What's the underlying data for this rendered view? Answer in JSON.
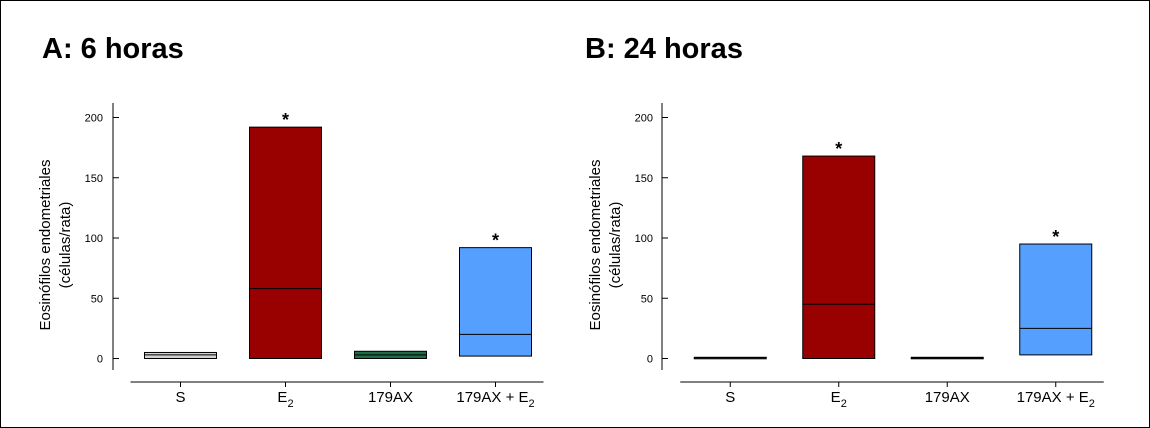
{
  "chart_data": [
    {
      "type": "box",
      "title": "A: 6 horas",
      "ylabel_line1": "Eosinófilos endometriales",
      "ylabel_line2": "(células/rata)",
      "yticks": [
        0,
        50,
        100,
        150,
        200
      ],
      "ylim": [
        -10,
        210
      ],
      "grid": false,
      "categories": [
        {
          "label": "S",
          "sub": "",
          "suffix": ""
        },
        {
          "label": "E",
          "sub": "2",
          "suffix": ""
        },
        {
          "label": "179AX",
          "sub": "",
          "suffix": ""
        },
        {
          "label": "179AX + E",
          "sub": "2",
          "suffix": ""
        }
      ],
      "boxes": [
        {
          "low": 0,
          "median": 3,
          "high": 5,
          "color": "#d3d3d3",
          "significant": false
        },
        {
          "low": 0,
          "median": 58,
          "high": 192,
          "color": "#990000",
          "significant": true
        },
        {
          "low": 0,
          "median": 3,
          "high": 6,
          "color": "#1e6b45",
          "significant": false
        },
        {
          "low": 2,
          "median": 20,
          "high": 92,
          "color": "#55a0ff",
          "significant": true
        }
      ],
      "significance_marker": "*"
    },
    {
      "type": "box",
      "title": "B: 24 horas",
      "ylabel_line1": "Eosinófilos endometriales",
      "ylabel_line2": "(células/rata)",
      "yticks": [
        0,
        50,
        100,
        150,
        200
      ],
      "ylim": [
        -10,
        210
      ],
      "grid": false,
      "categories": [
        {
          "label": "S",
          "sub": "",
          "suffix": ""
        },
        {
          "label": "E",
          "sub": "2",
          "suffix": ""
        },
        {
          "label": "179AX",
          "sub": "",
          "suffix": ""
        },
        {
          "label": "179AX + E",
          "sub": "2",
          "suffix": ""
        }
      ],
      "boxes": [
        {
          "low": 0,
          "median": 0.5,
          "high": 1,
          "color": "#d3d3d3",
          "significant": false
        },
        {
          "low": 0,
          "median": 45,
          "high": 168,
          "color": "#990000",
          "significant": true
        },
        {
          "low": 0,
          "median": 0.5,
          "high": 1,
          "color": "#1e6b45",
          "significant": false
        },
        {
          "low": 3,
          "median": 25,
          "high": 95,
          "color": "#55a0ff",
          "significant": true
        }
      ],
      "significance_marker": "*"
    }
  ]
}
